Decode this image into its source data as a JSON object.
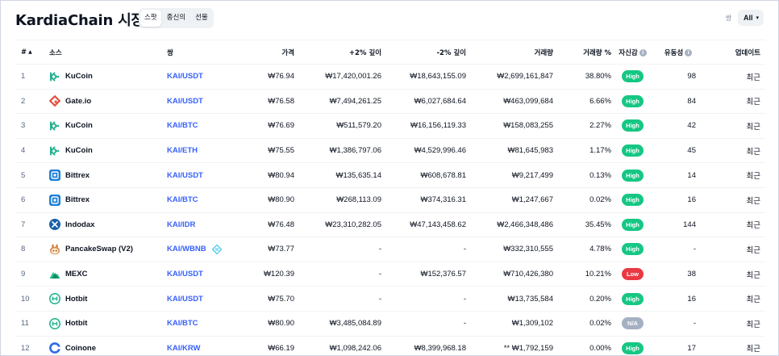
{
  "header": {
    "title": "KardiaChain 시장",
    "tabs": [
      {
        "label": "스팟",
        "active": true
      },
      {
        "label": "종신의",
        "active": false
      },
      {
        "label": "선물",
        "active": false
      }
    ],
    "pair_label": "쌍",
    "pair_filter_value": "All",
    "chevron_icon": "▾"
  },
  "columns": {
    "rank": "#",
    "sort_icon": "▲",
    "source": "소스",
    "pair": "쌍",
    "price": "가격",
    "plus2_depth": "+2% 깊이",
    "minus2_depth": "-2% 깊이",
    "volume": "거래량",
    "volume_pct": "거래량 %",
    "confidence": "자신감",
    "liquidity": "유동성",
    "updated": "업데이트",
    "info_icon": "i"
  },
  "colors": {
    "accent": "#3861fb",
    "high": "#16c784",
    "low": "#ea3943",
    "na": "#a6b0c3"
  },
  "rows": [
    {
      "rank": "1",
      "exchange": "KuCoin",
      "icon": "kucoin-icon",
      "pair": "KAI/USDT",
      "price": "₩76.94",
      "plus2": "₩17,420,001.26",
      "minus2": "₩18,643,155.09",
      "volume": "₩2,699,161,847",
      "volume_pct": "38.80%",
      "confidence": "High",
      "liquidity": "98",
      "updated": "최근"
    },
    {
      "rank": "2",
      "exchange": "Gate.io",
      "icon": "gateio-icon",
      "pair": "KAI/USDT",
      "price": "₩76.58",
      "plus2": "₩7,494,261.25",
      "minus2": "₩6,027,684.64",
      "volume": "₩463,099,684",
      "volume_pct": "6.66%",
      "confidence": "High",
      "liquidity": "84",
      "updated": "최근"
    },
    {
      "rank": "3",
      "exchange": "KuCoin",
      "icon": "kucoin-icon",
      "pair": "KAI/BTC",
      "price": "₩76.69",
      "plus2": "₩511,579.20",
      "minus2": "₩16,156,119.33",
      "volume": "₩158,083,255",
      "volume_pct": "2.27%",
      "confidence": "High",
      "liquidity": "42",
      "updated": "최근"
    },
    {
      "rank": "4",
      "exchange": "KuCoin",
      "icon": "kucoin-icon",
      "pair": "KAI/ETH",
      "price": "₩75.55",
      "plus2": "₩1,386,797.06",
      "minus2": "₩4,529,996.46",
      "volume": "₩81,645,983",
      "volume_pct": "1.17%",
      "confidence": "High",
      "liquidity": "45",
      "updated": "최근"
    },
    {
      "rank": "5",
      "exchange": "Bittrex",
      "icon": "bittrex-icon",
      "pair": "KAI/USDT",
      "price": "₩80.94",
      "plus2": "₩135,635.14",
      "minus2": "₩608,678.81",
      "volume": "₩9,217,499",
      "volume_pct": "0.13%",
      "confidence": "High",
      "liquidity": "14",
      "updated": "최근"
    },
    {
      "rank": "6",
      "exchange": "Bittrex",
      "icon": "bittrex-icon",
      "pair": "KAI/BTC",
      "price": "₩80.90",
      "plus2": "₩268,113.09",
      "minus2": "₩374,316.31",
      "volume": "₩1,247,667",
      "volume_pct": "0.02%",
      "confidence": "High",
      "liquidity": "16",
      "updated": "최근"
    },
    {
      "rank": "7",
      "exchange": "Indodax",
      "icon": "indodax-icon",
      "pair": "KAI/IDR",
      "price": "₩76.48",
      "plus2": "₩23,310,282.05",
      "minus2": "₩47,143,458.62",
      "volume": "₩2,466,348,486",
      "volume_pct": "35.45%",
      "confidence": "High",
      "liquidity": "144",
      "updated": "최근"
    },
    {
      "rank": "8",
      "exchange": "PancakeSwap (V2)",
      "icon": "pancakeswap-icon",
      "pair": "KAI/WBNB",
      "pair_extra_icon": "swap-link-icon",
      "price": "₩73.77",
      "plus2": "-",
      "minus2": "-",
      "volume": "₩332,310,555",
      "volume_pct": "4.78%",
      "confidence": "High",
      "liquidity": "-",
      "updated": "최근"
    },
    {
      "rank": "9",
      "exchange": "MEXC",
      "icon": "mexc-icon",
      "pair": "KAI/USDT",
      "price": "₩120.39",
      "plus2": "-",
      "minus2": "₩152,376.57",
      "volume": "₩710,426,380",
      "volume_pct": "10.21%",
      "confidence": "Low",
      "liquidity": "38",
      "updated": "최근"
    },
    {
      "rank": "10",
      "exchange": "Hotbit",
      "icon": "hotbit-icon",
      "pair": "KAI/USDT",
      "price": "₩75.70",
      "plus2": "-",
      "minus2": "-",
      "volume": "₩13,735,584",
      "volume_pct": "0.20%",
      "confidence": "High",
      "liquidity": "16",
      "updated": "최근"
    },
    {
      "rank": "11",
      "exchange": "Hotbit",
      "icon": "hotbit-icon",
      "pair": "KAI/BTC",
      "price": "₩80.90",
      "plus2": "₩3,485,084.89",
      "minus2": "-",
      "volume": "₩1,309,102",
      "volume_pct": "0.02%",
      "confidence": "N/A",
      "liquidity": "-",
      "updated": "최근"
    },
    {
      "rank": "12",
      "exchange": "Coinone",
      "icon": "coinone-icon",
      "pair": "KAI/KRW",
      "price": "₩66.19",
      "plus2": "₩1,098,242.06",
      "minus2": "₩8,399,968.18",
      "volume": "** ₩1,792,159",
      "volume_pct": "0.00%",
      "confidence": "High",
      "liquidity": "17",
      "updated": "최근"
    }
  ]
}
